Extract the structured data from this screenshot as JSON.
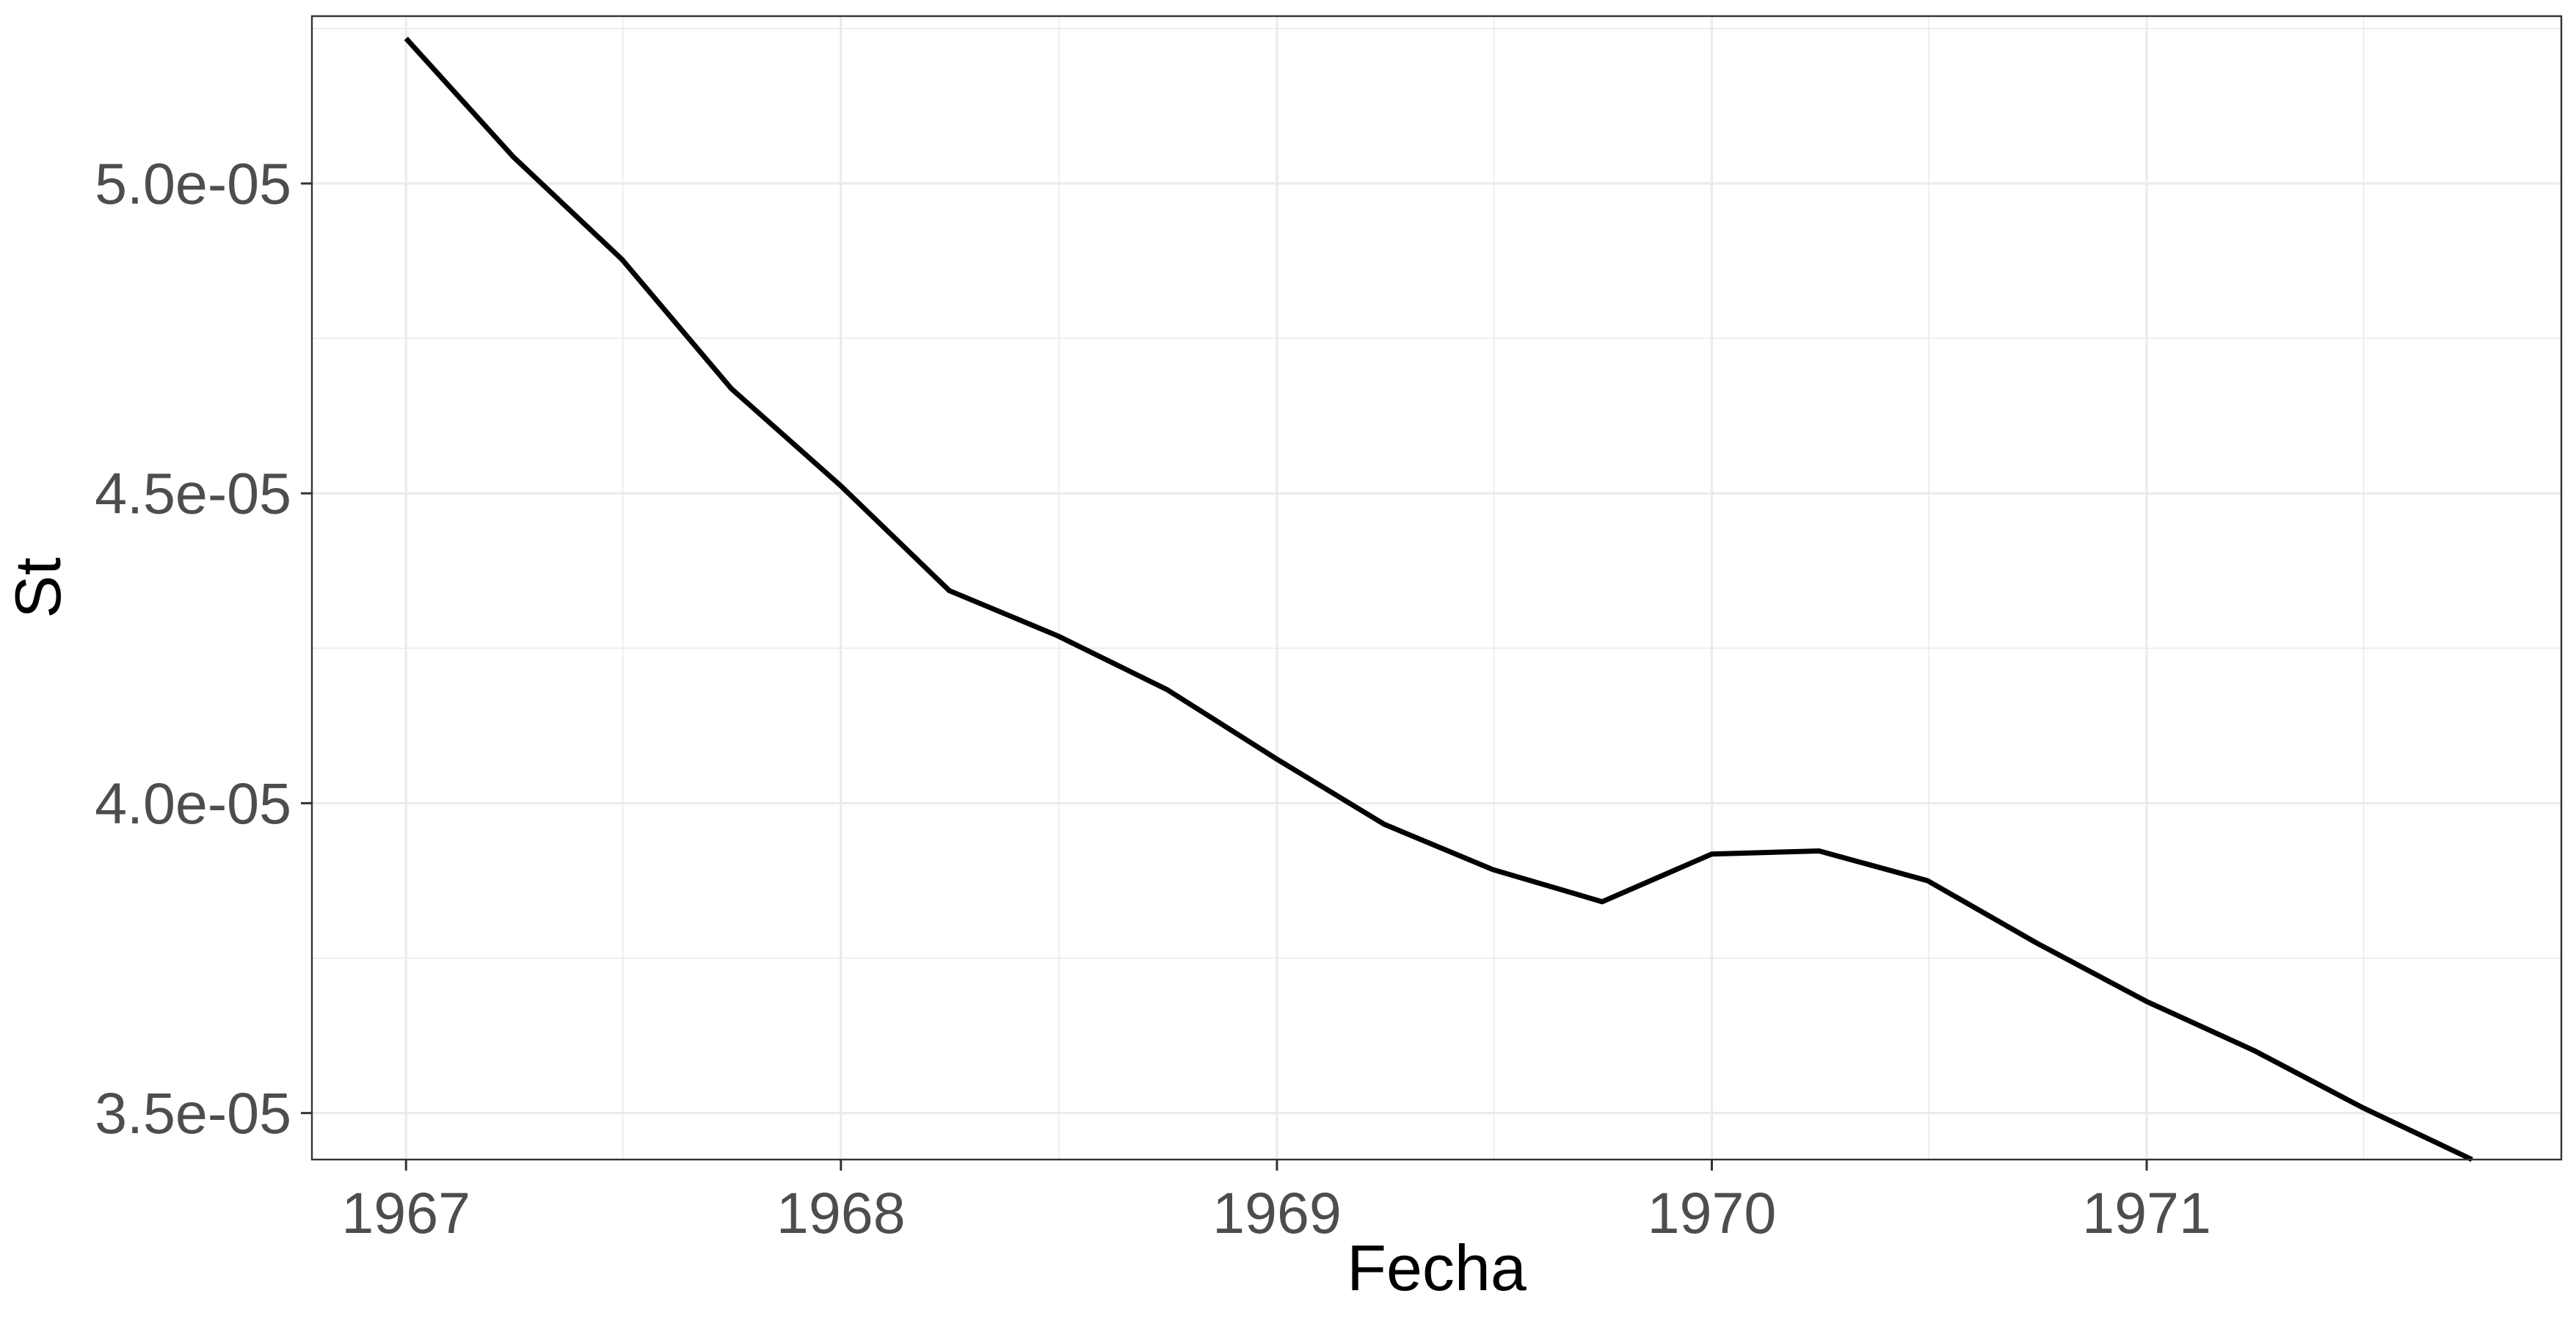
{
  "chart_data": {
    "type": "line",
    "title": "",
    "xlabel": "Fecha",
    "ylabel": "St",
    "x_ticks": [
      "1967",
      "1968",
      "1969",
      "1970",
      "1971"
    ],
    "y_ticks": [
      "3.5e-05",
      "4.0e-05",
      "4.5e-05",
      "5.0e-05"
    ],
    "xlim": [
      "1966-10-14",
      "1971-12-15"
    ],
    "ylim": [
      3.425e-05,
      5.27e-05
    ],
    "grid": true,
    "legend": "none",
    "series": [
      {
        "color": "#000000",
        "x": [
          "1967-01-01",
          "1967-04-01",
          "1967-07-01",
          "1967-10-01",
          "1968-01-01",
          "1968-04-01",
          "1968-07-01",
          "1968-10-01",
          "1969-01-01",
          "1969-04-01",
          "1969-07-01",
          "1969-10-01",
          "1970-01-01",
          "1970-04-01",
          "1970-07-01",
          "1970-10-01",
          "1971-01-01",
          "1971-04-01",
          "1971-07-01",
          "1971-10-01"
        ],
        "y": [
          5.234e-05,
          5.043e-05,
          4.878e-05,
          4.669e-05,
          4.512e-05,
          4.343e-05,
          4.27e-05,
          4.183e-05,
          4.071e-05,
          3.966e-05,
          3.893e-05,
          3.841e-05,
          3.918e-05,
          3.923e-05,
          3.875e-05,
          3.774e-05,
          3.68e-05,
          3.601e-05,
          3.509e-05,
          3.425e-05
        ]
      }
    ]
  }
}
